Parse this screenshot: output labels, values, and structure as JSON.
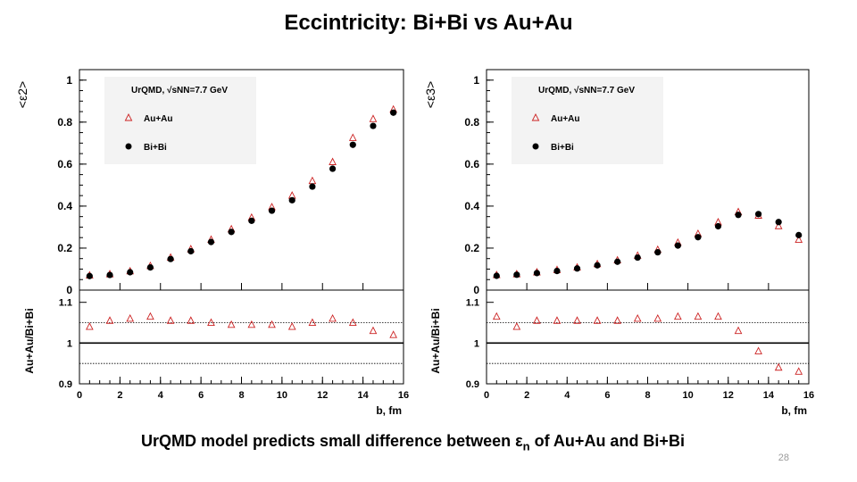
{
  "slide": {
    "title": "Eccintricity: Bi+Bi vs Au+Au",
    "caption_pre": "UrQMD model predicts small difference between ε",
    "caption_sub": "n",
    "caption_post": " of Au+Au and Bi+Bi",
    "slide_number": "28"
  },
  "chart_data": [
    {
      "type": "scatter",
      "ylabel_top": "<ε2>",
      "ylabel_bottom": "Au+Au/Bi+Bi",
      "xlabel": "b, fm",
      "legend_header": "UrQMD, √sNN=7.7 GeV",
      "legend": [
        "Au+Au",
        "Bi+Bi"
      ],
      "legend_position": "top-left",
      "xlim": [
        0,
        16
      ],
      "ylim_top": [
        0,
        1.05
      ],
      "ylim_bottom": [
        0.9,
        1.13
      ],
      "x_ticks": [
        0,
        2,
        4,
        6,
        8,
        10,
        12,
        14,
        16
      ],
      "y_ticks_top": [
        "0",
        "0.2",
        "0.4",
        "0.6",
        "0.8",
        "1"
      ],
      "y_ticks_bottom": [
        "0.9",
        "1",
        "1.1"
      ],
      "ratio_reference_lines": [
        0.95,
        1.0,
        1.05
      ],
      "x": [
        0.5,
        1.5,
        2.5,
        3.5,
        4.5,
        5.5,
        6.5,
        7.5,
        8.5,
        9.5,
        10.5,
        11.5,
        12.5,
        13.5,
        14.5,
        15.5
      ],
      "series": [
        {
          "name": "Au+Au",
          "marker": "open-triangle",
          "color": "#cc2222",
          "values": [
            0.07,
            0.076,
            0.09,
            0.115,
            0.155,
            0.195,
            0.24,
            0.29,
            0.345,
            0.395,
            0.45,
            0.52,
            0.61,
            0.725,
            0.815,
            0.86
          ]
        },
        {
          "name": "Bi+Bi",
          "marker": "filled-circle",
          "color": "#000000",
          "values": [
            0.067,
            0.072,
            0.085,
            0.108,
            0.148,
            0.185,
            0.229,
            0.277,
            0.33,
            0.378,
            0.428,
            0.493,
            0.578,
            0.692,
            0.782,
            0.845
          ]
        }
      ],
      "ratio": [
        1.04,
        1.055,
        1.06,
        1.065,
        1.055,
        1.055,
        1.05,
        1.045,
        1.045,
        1.045,
        1.04,
        1.05,
        1.06,
        1.05,
        1.03,
        1.02
      ]
    },
    {
      "type": "scatter",
      "ylabel_top": "<ε3>",
      "ylabel_bottom": "Au+Au/Bi+Bi",
      "xlabel": "b, fm",
      "legend_header": "UrQMD, √sNN=7.7 GeV",
      "legend": [
        "Au+Au",
        "Bi+Bi"
      ],
      "legend_position": "top-left",
      "xlim": [
        0,
        16
      ],
      "ylim_top": [
        0,
        1.05
      ],
      "ylim_bottom": [
        0.9,
        1.13
      ],
      "x_ticks": [
        0,
        2,
        4,
        6,
        8,
        10,
        12,
        14,
        16
      ],
      "y_ticks_top": [
        "0",
        "0.2",
        "0.4",
        "0.6",
        "0.8",
        "1"
      ],
      "y_ticks_bottom": [
        "0.9",
        "1",
        "1.1"
      ],
      "ratio_reference_lines": [
        0.95,
        1.0,
        1.05
      ],
      "x": [
        0.5,
        1.5,
        2.5,
        3.5,
        4.5,
        5.5,
        6.5,
        7.5,
        8.5,
        9.5,
        10.5,
        11.5,
        12.5,
        13.5,
        14.5,
        15.5
      ],
      "series": [
        {
          "name": "Au+Au",
          "marker": "open-triangle",
          "color": "#cc2222",
          "values": [
            0.072,
            0.076,
            0.085,
            0.096,
            0.108,
            0.124,
            0.142,
            0.164,
            0.192,
            0.226,
            0.268,
            0.323,
            0.372,
            0.355,
            0.305,
            0.24
          ]
        },
        {
          "name": "Bi+Bi",
          "marker": "filled-circle",
          "color": "#000000",
          "values": [
            0.068,
            0.073,
            0.081,
            0.091,
            0.103,
            0.118,
            0.135,
            0.155,
            0.18,
            0.212,
            0.252,
            0.304,
            0.358,
            0.362,
            0.324,
            0.262
          ]
        }
      ],
      "ratio": [
        1.065,
        1.04,
        1.055,
        1.055,
        1.055,
        1.055,
        1.055,
        1.06,
        1.06,
        1.065,
        1.065,
        1.065,
        1.03,
        0.98,
        0.94,
        0.93
      ]
    }
  ]
}
